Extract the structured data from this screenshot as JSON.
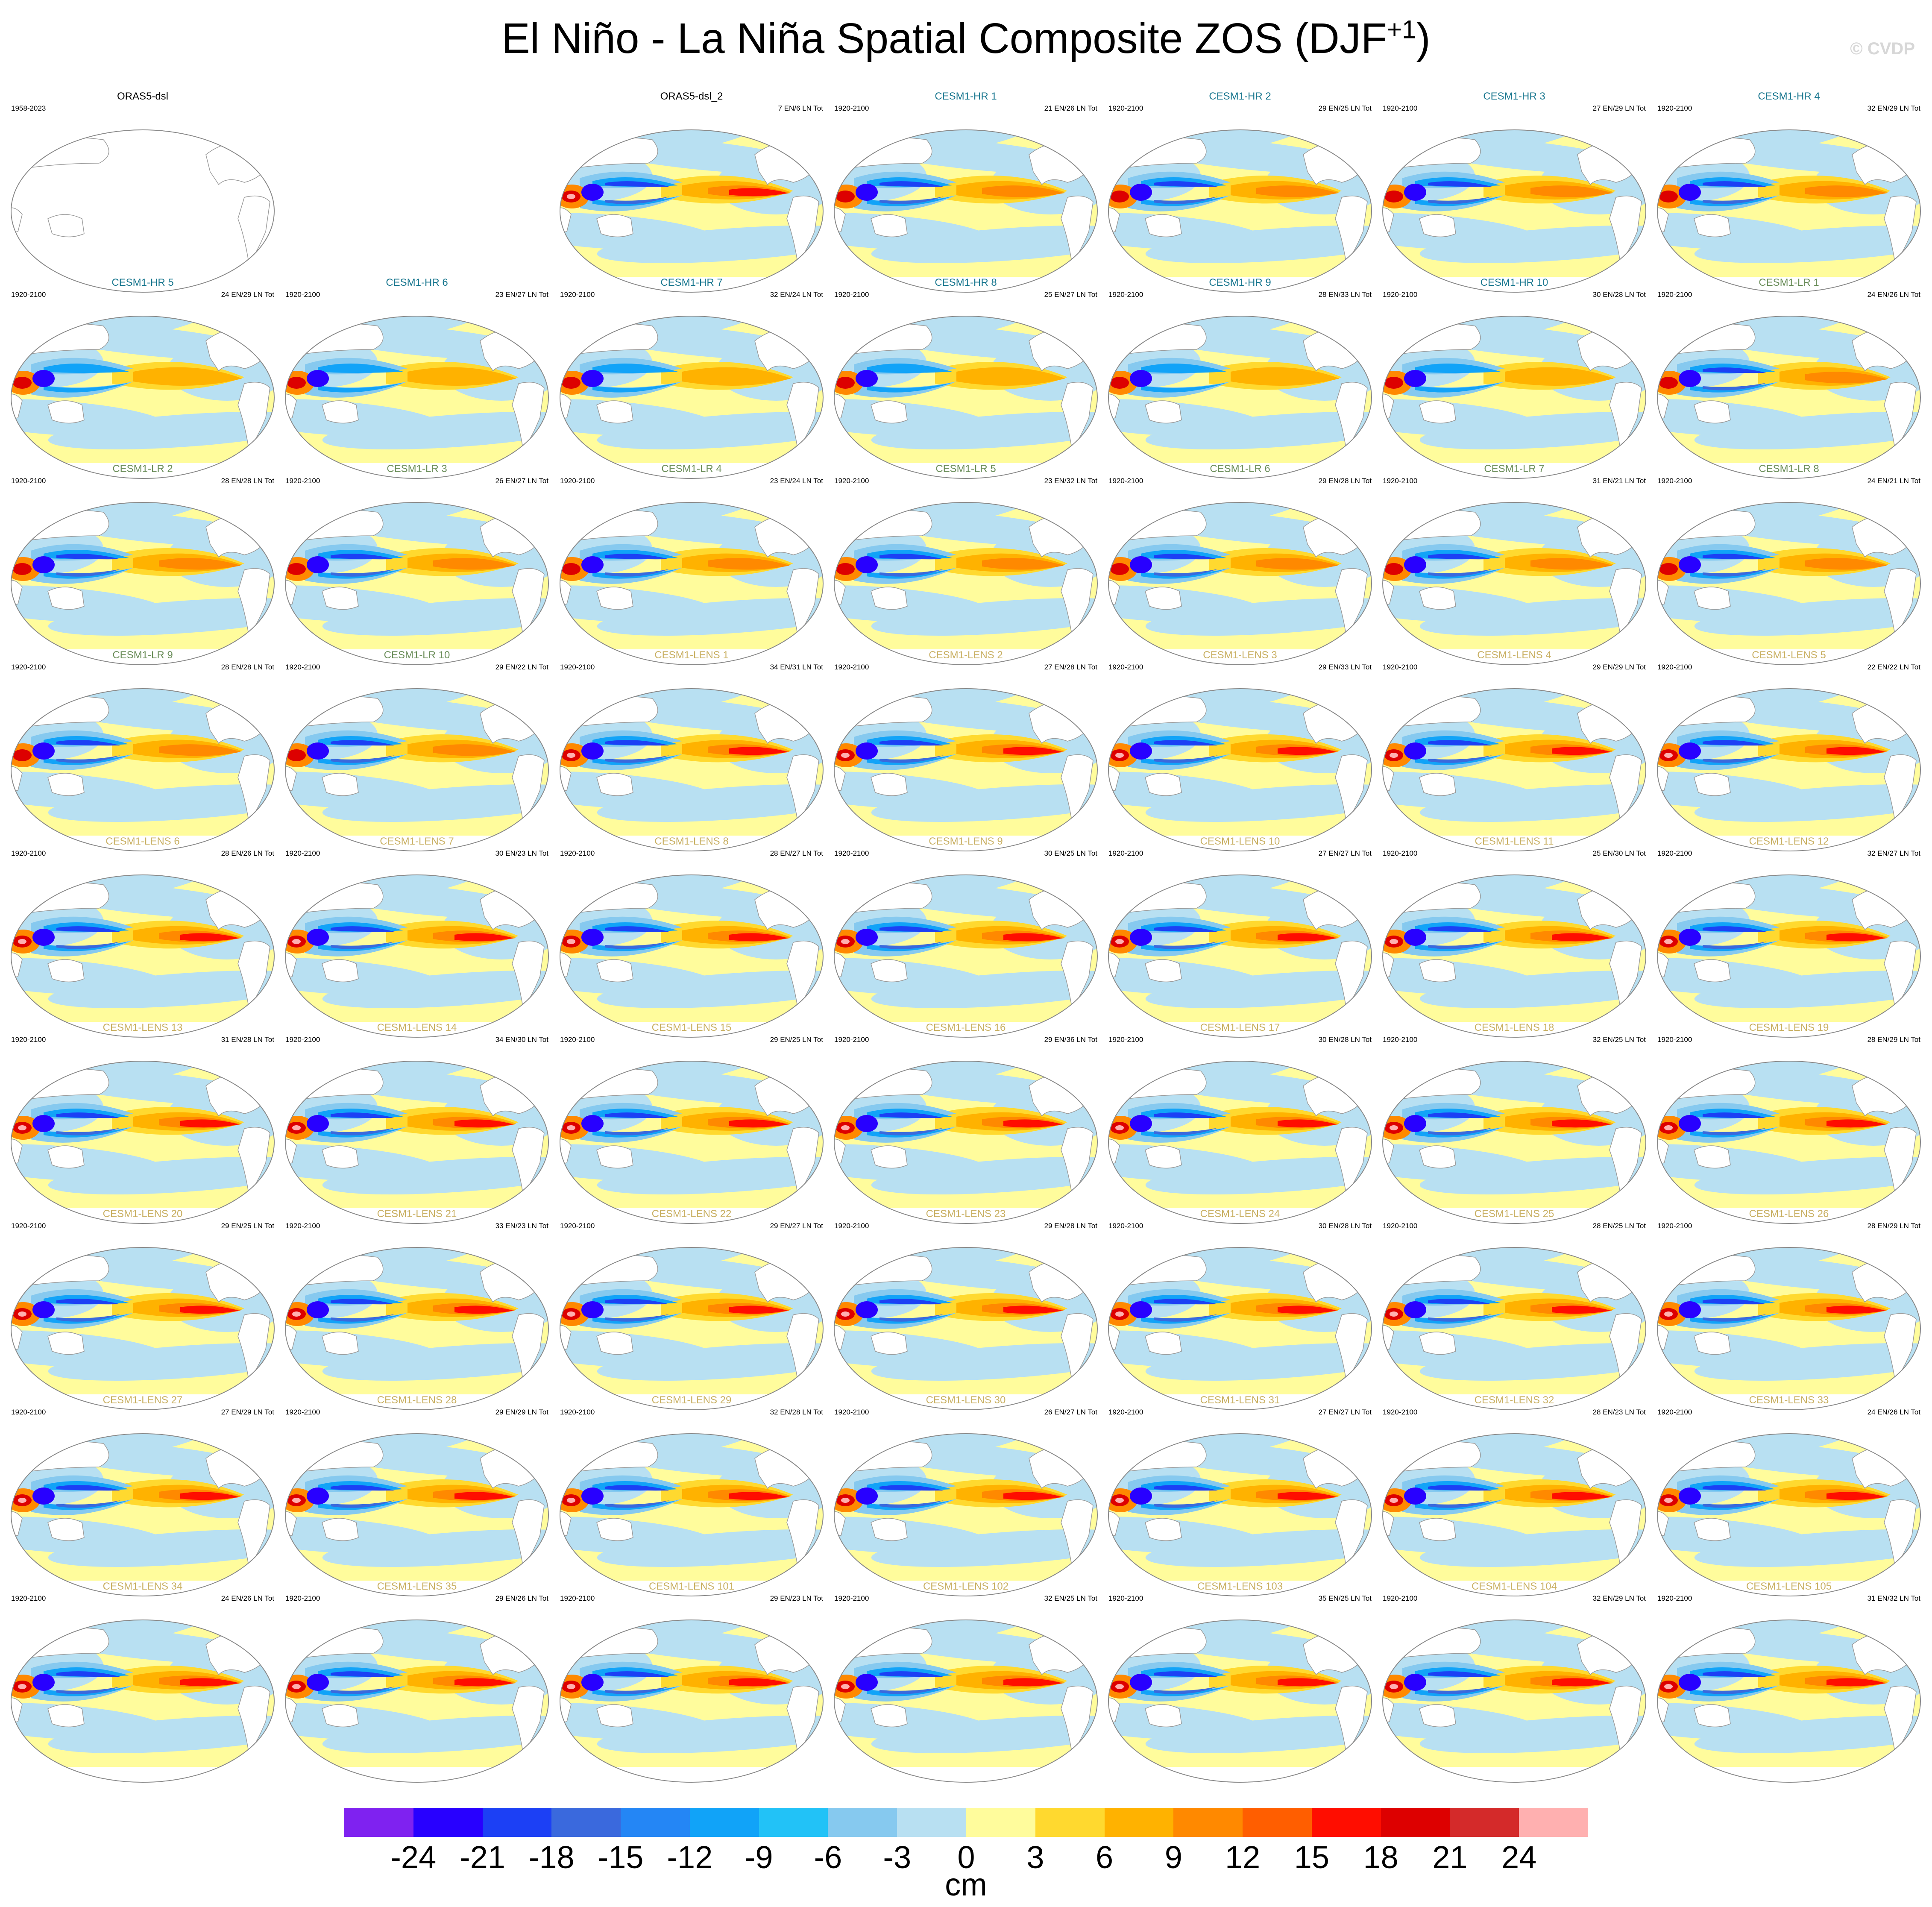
{
  "header": {
    "title_main": "El Niño - La Niña Spatial Composite ZOS (DJF",
    "title_sup": "+1",
    "title_end": ")",
    "copyright": "© CVDP"
  },
  "colors": {
    "cesm1_hr": "#19778f",
    "cesm1_lr": "#6b8e5a",
    "cesm1_lens": "#c9b063",
    "observations": "#000000"
  },
  "chart_data": {
    "type": "heatmap",
    "title": "El Niño - La Niña Spatial Composite ZOS (DJF+1)",
    "units": "cm",
    "levels": [
      -24,
      -21,
      -18,
      -15,
      -12,
      -9,
      -6,
      -3,
      0,
      3,
      6,
      9,
      12,
      15,
      18,
      21,
      24
    ],
    "colorbar_labels": [
      "-24",
      "-21",
      "-18",
      "-15",
      "-12",
      "-9",
      "-6",
      "-3",
      "0",
      "3",
      "6",
      "9",
      "12",
      "15",
      "18",
      "21",
      "24"
    ],
    "colorbar_colors": [
      "#7f22f0",
      "#2800ff",
      "#1c40f5",
      "#3a69dd",
      "#2486f5",
      "#11a3f8",
      "#22c2f7",
      "#86c9ef",
      "#b8e0f2",
      "#fffc9c",
      "#ffd92f",
      "#ffb200",
      "#ff8900",
      "#ff5e00",
      "#ff0d00",
      "#dd0000",
      "#d42a2a",
      "#ffb0b0"
    ],
    "panels": [
      {
        "name": "ORAS5-dsl",
        "left": "1958-2023",
        "right": "",
        "group": "observations",
        "empty": true
      },
      {
        "name": "ORAS5-dsl_2",
        "left": "",
        "right": "7 EN/6 LN Tot",
        "group": "observations",
        "strength": 1.0
      },
      {
        "name": "CESM1-HR 1",
        "left": "1920-2100",
        "right": "21 EN/26 LN Tot",
        "group": "cesm1_hr",
        "strength": 0.8
      },
      {
        "name": "CESM1-HR 2",
        "left": "1920-2100",
        "right": "29 EN/25 LN Tot",
        "group": "cesm1_hr",
        "strength": 0.75
      },
      {
        "name": "CESM1-HR 3",
        "left": "1920-2100",
        "right": "27 EN/29 LN Tot",
        "group": "cesm1_hr",
        "strength": 0.75
      },
      {
        "name": "CESM1-HR 4",
        "left": "1920-2100",
        "right": "32 EN/29 LN Tot",
        "group": "cesm1_hr",
        "strength": 0.75
      },
      {
        "name": "CESM1-HR 5",
        "left": "1920-2100",
        "right": "24 EN/29 LN Tot",
        "group": "cesm1_hr",
        "strength": 0.7
      },
      {
        "name": "CESM1-HR 6",
        "left": "1920-2100",
        "right": "23 EN/27 LN Tot",
        "group": "cesm1_hr",
        "strength": 0.7
      },
      {
        "name": "CESM1-HR 7",
        "left": "1920-2100",
        "right": "32 EN/24 LN Tot",
        "group": "cesm1_hr",
        "strength": 0.7
      },
      {
        "name": "CESM1-HR 8",
        "left": "1920-2100",
        "right": "25 EN/27 LN Tot",
        "group": "cesm1_hr",
        "strength": 0.7
      },
      {
        "name": "CESM1-HR 9",
        "left": "1920-2100",
        "right": "28 EN/33 LN Tot",
        "group": "cesm1_hr",
        "strength": 0.7
      },
      {
        "name": "CESM1-HR 10",
        "left": "1920-2100",
        "right": "30 EN/28 LN Tot",
        "group": "cesm1_hr",
        "strength": 0.7
      },
      {
        "name": "CESM1-LR 1",
        "left": "1920-2100",
        "right": "24 EN/26 LN Tot",
        "group": "cesm1_lr",
        "strength": 0.85
      },
      {
        "name": "CESM1-LR 2",
        "left": "1920-2100",
        "right": "28 EN/28 LN Tot",
        "group": "cesm1_lr",
        "strength": 0.8
      },
      {
        "name": "CESM1-LR 3",
        "left": "1920-2100",
        "right": "26 EN/27 LN Tot",
        "group": "cesm1_lr",
        "strength": 0.8
      },
      {
        "name": "CESM1-LR 4",
        "left": "1920-2100",
        "right": "23 EN/24 LN Tot",
        "group": "cesm1_lr",
        "strength": 0.8
      },
      {
        "name": "CESM1-LR 5",
        "left": "1920-2100",
        "right": "23 EN/32 LN Tot",
        "group": "cesm1_lr",
        "strength": 0.8
      },
      {
        "name": "CESM1-LR 6",
        "left": "1920-2100",
        "right": "29 EN/28 LN Tot",
        "group": "cesm1_lr",
        "strength": 0.8
      },
      {
        "name": "CESM1-LR 7",
        "left": "1920-2100",
        "right": "31 EN/21 LN Tot",
        "group": "cesm1_lr",
        "strength": 0.8
      },
      {
        "name": "CESM1-LR 8",
        "left": "1920-2100",
        "right": "24 EN/21 LN Tot",
        "group": "cesm1_lr",
        "strength": 0.8
      },
      {
        "name": "CESM1-LR 9",
        "left": "1920-2100",
        "right": "28 EN/28 LN Tot",
        "group": "cesm1_lr",
        "strength": 0.75
      },
      {
        "name": "CESM1-LR 10",
        "left": "1920-2100",
        "right": "29 EN/22 LN Tot",
        "group": "cesm1_lr",
        "strength": 0.75
      },
      {
        "name": "CESM1-LENS 1",
        "left": "1920-2100",
        "right": "34 EN/31 LN Tot",
        "group": "cesm1_lens",
        "strength": 1.0
      },
      {
        "name": "CESM1-LENS 2",
        "left": "1920-2100",
        "right": "27 EN/28 LN Tot",
        "group": "cesm1_lens",
        "strength": 1.0
      },
      {
        "name": "CESM1-LENS 3",
        "left": "1920-2100",
        "right": "29 EN/33 LN Tot",
        "group": "cesm1_lens",
        "strength": 1.0
      },
      {
        "name": "CESM1-LENS 4",
        "left": "1920-2100",
        "right": "29 EN/29 LN Tot",
        "group": "cesm1_lens",
        "strength": 1.0
      },
      {
        "name": "CESM1-LENS 5",
        "left": "1920-2100",
        "right": "22 EN/22 LN Tot",
        "group": "cesm1_lens",
        "strength": 1.0
      },
      {
        "name": "CESM1-LENS 6",
        "left": "1920-2100",
        "right": "28 EN/26 LN Tot",
        "group": "cesm1_lens",
        "strength": 1.0
      },
      {
        "name": "CESM1-LENS 7",
        "left": "1920-2100",
        "right": "30 EN/23 LN Tot",
        "group": "cesm1_lens",
        "strength": 1.0
      },
      {
        "name": "CESM1-LENS 8",
        "left": "1920-2100",
        "right": "28 EN/27 LN Tot",
        "group": "cesm1_lens",
        "strength": 0.95
      },
      {
        "name": "CESM1-LENS 9",
        "left": "1920-2100",
        "right": "30 EN/25 LN Tot",
        "group": "cesm1_lens",
        "strength": 0.95
      },
      {
        "name": "CESM1-LENS 10",
        "left": "1920-2100",
        "right": "27 EN/27 LN Tot",
        "group": "cesm1_lens",
        "strength": 0.95
      },
      {
        "name": "CESM1-LENS 11",
        "left": "1920-2100",
        "right": "25 EN/30 LN Tot",
        "group": "cesm1_lens",
        "strength": 0.95
      },
      {
        "name": "CESM1-LENS 12",
        "left": "1920-2100",
        "right": "32 EN/27 LN Tot",
        "group": "cesm1_lens",
        "strength": 0.95
      },
      {
        "name": "CESM1-LENS 13",
        "left": "1920-2100",
        "right": "31 EN/28 LN Tot",
        "group": "cesm1_lens",
        "strength": 0.95
      },
      {
        "name": "CESM1-LENS 14",
        "left": "1920-2100",
        "right": "34 EN/30 LN Tot",
        "group": "cesm1_lens",
        "strength": 1.0
      },
      {
        "name": "CESM1-LENS 15",
        "left": "1920-2100",
        "right": "29 EN/25 LN Tot",
        "group": "cesm1_lens",
        "strength": 0.95
      },
      {
        "name": "CESM1-LENS 16",
        "left": "1920-2100",
        "right": "29 EN/36 LN Tot",
        "group": "cesm1_lens",
        "strength": 0.95
      },
      {
        "name": "CESM1-LENS 17",
        "left": "1920-2100",
        "right": "30 EN/28 LN Tot",
        "group": "cesm1_lens",
        "strength": 0.95
      },
      {
        "name": "CESM1-LENS 18",
        "left": "1920-2100",
        "right": "32 EN/25 LN Tot",
        "group": "cesm1_lens",
        "strength": 0.95
      },
      {
        "name": "CESM1-LENS 19",
        "left": "1920-2100",
        "right": "28 EN/29 LN Tot",
        "group": "cesm1_lens",
        "strength": 0.95
      },
      {
        "name": "CESM1-LENS 20",
        "left": "1920-2100",
        "right": "29 EN/25 LN Tot",
        "group": "cesm1_lens",
        "strength": 0.95
      },
      {
        "name": "CESM1-LENS 21",
        "left": "1920-2100",
        "right": "33 EN/23 LN Tot",
        "group": "cesm1_lens",
        "strength": 0.95
      },
      {
        "name": "CESM1-LENS 22",
        "left": "1920-2100",
        "right": "29 EN/27 LN Tot",
        "group": "cesm1_lens",
        "strength": 0.95
      },
      {
        "name": "CESM1-LENS 23",
        "left": "1920-2100",
        "right": "29 EN/28 LN Tot",
        "group": "cesm1_lens",
        "strength": 0.95
      },
      {
        "name": "CESM1-LENS 24",
        "left": "1920-2100",
        "right": "30 EN/28 LN Tot",
        "group": "cesm1_lens",
        "strength": 0.95
      },
      {
        "name": "CESM1-LENS 25",
        "left": "1920-2100",
        "right": "28 EN/25 LN Tot",
        "group": "cesm1_lens",
        "strength": 0.95
      },
      {
        "name": "CESM1-LENS 26",
        "left": "1920-2100",
        "right": "28 EN/29 LN Tot",
        "group": "cesm1_lens",
        "strength": 0.95
      },
      {
        "name": "CESM1-LENS 27",
        "left": "1920-2100",
        "right": "27 EN/29 LN Tot",
        "group": "cesm1_lens",
        "strength": 0.95
      },
      {
        "name": "CESM1-LENS 28",
        "left": "1920-2100",
        "right": "29 EN/29 LN Tot",
        "group": "cesm1_lens",
        "strength": 0.95
      },
      {
        "name": "CESM1-LENS 29",
        "left": "1920-2100",
        "right": "32 EN/28 LN Tot",
        "group": "cesm1_lens",
        "strength": 0.95
      },
      {
        "name": "CESM1-LENS 30",
        "left": "1920-2100",
        "right": "26 EN/27 LN Tot",
        "group": "cesm1_lens",
        "strength": 0.95
      },
      {
        "name": "CESM1-LENS 31",
        "left": "1920-2100",
        "right": "27 EN/27 LN Tot",
        "group": "cesm1_lens",
        "strength": 0.95
      },
      {
        "name": "CESM1-LENS 32",
        "left": "1920-2100",
        "right": "28 EN/23 LN Tot",
        "group": "cesm1_lens",
        "strength": 0.95
      },
      {
        "name": "CESM1-LENS 33",
        "left": "1920-2100",
        "right": "24 EN/26 LN Tot",
        "group": "cesm1_lens",
        "strength": 0.95
      },
      {
        "name": "CESM1-LENS 34",
        "left": "1920-2100",
        "right": "24 EN/26 LN Tot",
        "group": "cesm1_lens",
        "strength": 0.95
      },
      {
        "name": "CESM1-LENS 35",
        "left": "1920-2100",
        "right": "29 EN/26 LN Tot",
        "group": "cesm1_lens",
        "strength": 0.95
      },
      {
        "name": "CESM1-LENS 101",
        "left": "1920-2100",
        "right": "29 EN/23 LN Tot",
        "group": "cesm1_lens",
        "strength": 1.0
      },
      {
        "name": "CESM1-LENS 102",
        "left": "1920-2100",
        "right": "32 EN/25 LN Tot",
        "group": "cesm1_lens",
        "strength": 1.0
      },
      {
        "name": "CESM1-LENS 103",
        "left": "1920-2100",
        "right": "35 EN/25 LN Tot",
        "group": "cesm1_lens",
        "strength": 1.0
      },
      {
        "name": "CESM1-LENS 104",
        "left": "1920-2100",
        "right": "32 EN/29 LN Tot",
        "group": "cesm1_lens",
        "strength": 1.0
      },
      {
        "name": "CESM1-LENS 105",
        "left": "1920-2100",
        "right": "31 EN/32 LN Tot",
        "group": "cesm1_lens",
        "strength": 1.0
      }
    ]
  }
}
